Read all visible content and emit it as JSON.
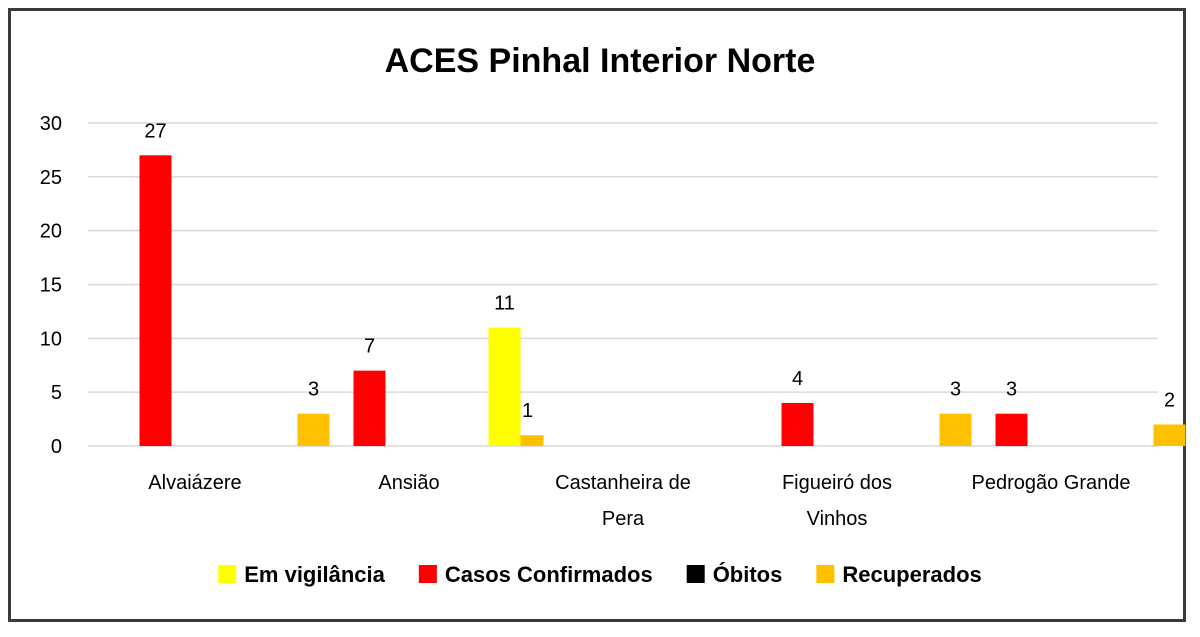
{
  "chart_data": {
    "type": "bar",
    "title": "ACES Pinhal Interior Norte",
    "categories": [
      [
        "Alvaiázere"
      ],
      [
        "Ansião"
      ],
      [
        "Castanheira de",
        "Pera"
      ],
      [
        "Figueiró dos",
        "Vinhos"
      ],
      [
        "Pedrogão Grande"
      ]
    ],
    "series": [
      {
        "name": "Em vigilância",
        "color": "#ffff00",
        "values": [
          0,
          0,
          11,
          0,
          0
        ]
      },
      {
        "name": "Casos Confirmados",
        "color": "#ff0000",
        "values": [
          27,
          7,
          0,
          4,
          3
        ]
      },
      {
        "name": "Óbitos",
        "color": "#000000",
        "values": [
          0,
          0,
          0,
          0,
          0
        ]
      },
      {
        "name": "Recuperados",
        "color": "#ffc000",
        "values": [
          3,
          1,
          0,
          3,
          2
        ]
      }
    ],
    "ylim": [
      0,
      30
    ],
    "yticks": [
      0,
      5,
      10,
      15,
      20,
      25,
      30
    ],
    "grid": true,
    "legend_position": "bottom"
  }
}
